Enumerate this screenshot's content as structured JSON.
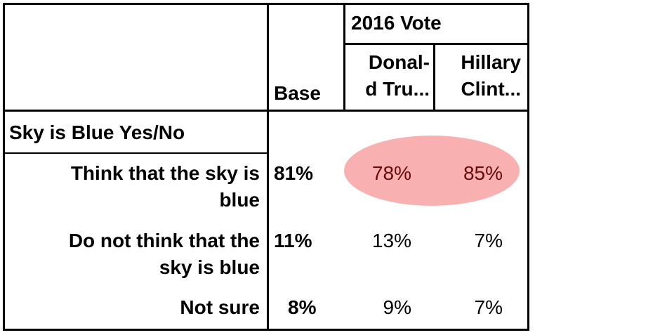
{
  "header": {
    "base_label": "Base",
    "group_label": "2016 Vote",
    "columns": [
      "Donal-\nd Tru...",
      "Hillary\nClint..."
    ],
    "column_lines": [
      [
        "Donal-",
        "d Tru..."
      ],
      [
        "Hillary",
        "Clint..."
      ]
    ]
  },
  "question": "Sky is Blue Yes/No",
  "rows": [
    {
      "label_lines": [
        "Think that the sky is",
        "blue"
      ],
      "base": "81%",
      "trump": "78%",
      "clinton": "85%",
      "highlighted": true
    },
    {
      "label_lines": [
        "Do not think that the",
        "sky is blue"
      ],
      "base": "11%",
      "trump": "13%",
      "clinton": "7%",
      "highlighted": false
    },
    {
      "label_lines": [
        "Not sure"
      ],
      "base": "8%",
      "trump": "9%",
      "clinton": "7%",
      "highlighted": false
    }
  ],
  "colors": {
    "highlight_fill": "#f8b0b0",
    "highlight_text": "#6b0a0a"
  }
}
